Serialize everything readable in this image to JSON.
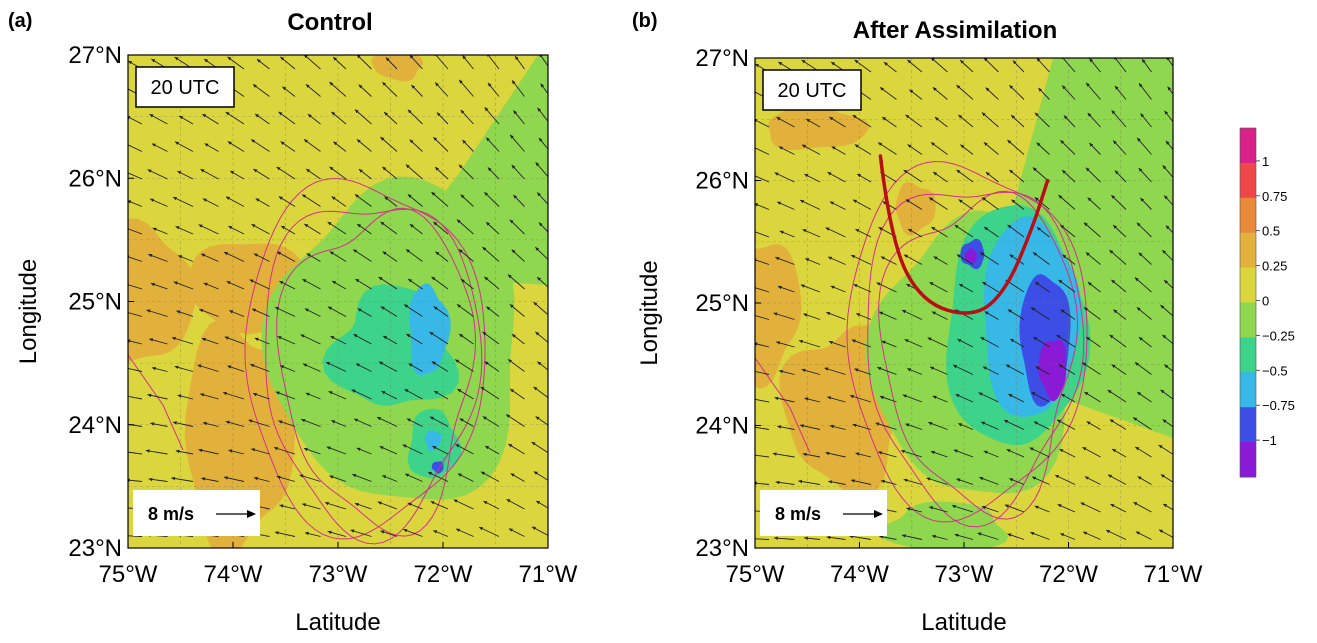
{
  "chart_data": [
    {
      "type": "heatmap",
      "panel_label": "(a)",
      "title": "Control",
      "time_label": "20 UTC",
      "scale_label": "8 m/s",
      "xlabel": "Latitude",
      "ylabel": "Longitude",
      "x_ticks": [
        "75°W",
        "74°W",
        "73°W",
        "72°W",
        "71°W"
      ],
      "x_tick_values": [
        -75,
        -74,
        -73,
        -72,
        -71
      ],
      "y_ticks": [
        "27°N",
        "26°N",
        "25°N",
        "24°N",
        "23°N"
      ],
      "y_tick_values": [
        27,
        26,
        25,
        24,
        23
      ],
      "xlim": [
        -75,
        -71
      ],
      "ylim": [
        23,
        27
      ],
      "grid": true,
      "wind_vector_direction": "northwest"
    },
    {
      "type": "heatmap",
      "panel_label": "(b)",
      "title": "After Assimilation",
      "time_label": "20 UTC",
      "scale_label": "8 m/s",
      "xlabel": "Latitude",
      "ylabel": "Longitude",
      "x_ticks": [
        "75°W",
        "74°W",
        "73°W",
        "72°W",
        "71°W"
      ],
      "x_tick_values": [
        -75,
        -74,
        -73,
        -72,
        -71
      ],
      "y_ticks": [
        "27°N",
        "26°N",
        "25°N",
        "24°N",
        "23°N"
      ],
      "y_tick_values": [
        27,
        26,
        25,
        24,
        23
      ],
      "xlim": [
        -75,
        -71
      ],
      "ylim": [
        23,
        27
      ],
      "grid": true,
      "wind_vector_direction": "northwest",
      "annotation_curve": [
        [
          -73.8,
          26.2
        ],
        [
          -73.7,
          25.5
        ],
        [
          -73.4,
          25.0
        ],
        [
          -72.9,
          24.88
        ],
        [
          -72.6,
          25.1
        ],
        [
          -72.35,
          25.6
        ],
        [
          -72.2,
          26.0
        ]
      ]
    }
  ],
  "colorbar": {
    "labels": [
      "1",
      "0.75",
      "0.5",
      "0.25",
      "0",
      "−0.25",
      "−0.5",
      "−0.75",
      "−1"
    ],
    "values": [
      1,
      0.75,
      0.5,
      0.25,
      0,
      -0.25,
      -0.5,
      -0.75,
      -1
    ],
    "colors": [
      "#d8228a",
      "#f0484a",
      "#e98a3a",
      "#e2b13c",
      "#dcd63e",
      "#8ed74e",
      "#3ed38a",
      "#37b8e6",
      "#3c4ee6",
      "#8a1ad6"
    ]
  },
  "colors": {
    "background_field": "#dcd63e",
    "positive_025": "#e2b13c",
    "negative_025": "#8ed74e",
    "negative_05": "#3ed38a",
    "negative_075": "#37b8e6",
    "negative_1": "#3c4ee6",
    "contour": "#d4308a",
    "annotation_curve": "#b80f14"
  }
}
